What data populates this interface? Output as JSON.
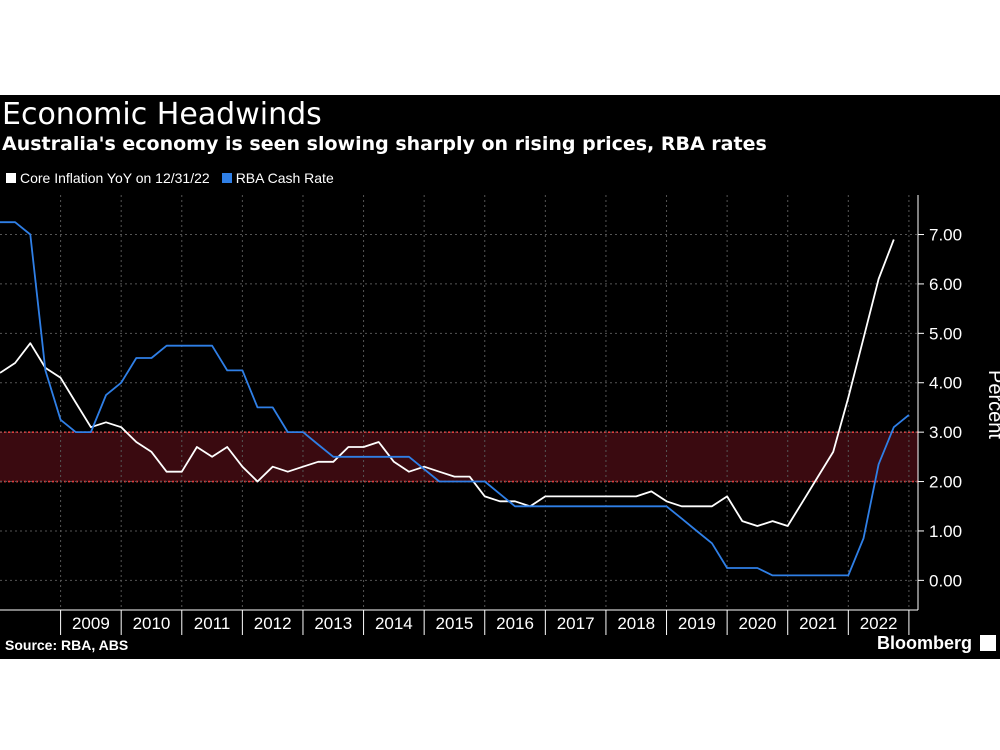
{
  "header": {
    "title": "Economic Headwinds",
    "subtitle": "Australia's economy is seen slowing sharply on rising prices, RBA rates"
  },
  "footer": {
    "source": "Source: RBA, ABS",
    "brand": "Bloomberg"
  },
  "colors": {
    "background": "#000000",
    "inflation": "#ffffff",
    "cash_rate": "#2f7fe6",
    "target_band_fill": "#3a0a10",
    "target_band_line": "#e23a3a",
    "grid": "#555555"
  },
  "chart_data": {
    "type": "line",
    "title": "Economic Headwinds",
    "subtitle": "Australia's economy is seen slowing sharply on rising prices, RBA rates",
    "ylabel": "Percent",
    "ylim": [
      -0.6,
      7.8
    ],
    "xlim": [
      2008.0,
      2023.15
    ],
    "y_ticks": [
      "0.00",
      "1.00",
      "2.00",
      "3.00",
      "4.00",
      "5.00",
      "6.00",
      "7.00"
    ],
    "x_tick_labels": [
      "2009",
      "2010",
      "2011",
      "2012",
      "2013",
      "2014",
      "2015",
      "2016",
      "2017",
      "2018",
      "2019",
      "2020",
      "2021",
      "2022"
    ],
    "grid": true,
    "legend_position": "top-left",
    "target_band": [
      2.0,
      3.0
    ],
    "series": [
      {
        "name": "Core Inflation YoY on 12/31/22",
        "color": "#ffffff",
        "points": [
          [
            2008.0,
            4.2
          ],
          [
            2008.25,
            4.4
          ],
          [
            2008.5,
            4.8
          ],
          [
            2008.75,
            4.3
          ],
          [
            2009.0,
            4.1
          ],
          [
            2009.25,
            3.6
          ],
          [
            2009.5,
            3.1
          ],
          [
            2009.75,
            3.2
          ],
          [
            2010.0,
            3.1
          ],
          [
            2010.25,
            2.8
          ],
          [
            2010.5,
            2.6
          ],
          [
            2010.75,
            2.2
          ],
          [
            2011.0,
            2.2
          ],
          [
            2011.25,
            2.7
          ],
          [
            2011.5,
            2.5
          ],
          [
            2011.75,
            2.7
          ],
          [
            2012.0,
            2.3
          ],
          [
            2012.25,
            2.0
          ],
          [
            2012.5,
            2.3
          ],
          [
            2012.75,
            2.2
          ],
          [
            2013.0,
            2.3
          ],
          [
            2013.25,
            2.4
          ],
          [
            2013.5,
            2.4
          ],
          [
            2013.75,
            2.7
          ],
          [
            2014.0,
            2.7
          ],
          [
            2014.25,
            2.8
          ],
          [
            2014.5,
            2.4
          ],
          [
            2014.75,
            2.2
          ],
          [
            2015.0,
            2.3
          ],
          [
            2015.25,
            2.2
          ],
          [
            2015.5,
            2.1
          ],
          [
            2015.75,
            2.1
          ],
          [
            2016.0,
            1.7
          ],
          [
            2016.25,
            1.6
          ],
          [
            2016.5,
            1.6
          ],
          [
            2016.75,
            1.5
          ],
          [
            2017.0,
            1.7
          ],
          [
            2017.25,
            1.7
          ],
          [
            2017.5,
            1.7
          ],
          [
            2017.75,
            1.7
          ],
          [
            2018.0,
            1.7
          ],
          [
            2018.25,
            1.7
          ],
          [
            2018.5,
            1.7
          ],
          [
            2018.75,
            1.8
          ],
          [
            2019.0,
            1.6
          ],
          [
            2019.25,
            1.5
          ],
          [
            2019.5,
            1.5
          ],
          [
            2019.75,
            1.5
          ],
          [
            2020.0,
            1.7
          ],
          [
            2020.25,
            1.2
          ],
          [
            2020.5,
            1.1
          ],
          [
            2020.75,
            1.2
          ],
          [
            2021.0,
            1.1
          ],
          [
            2021.25,
            1.6
          ],
          [
            2021.5,
            2.1
          ],
          [
            2021.75,
            2.6
          ],
          [
            2022.0,
            3.7
          ],
          [
            2022.25,
            4.9
          ],
          [
            2022.5,
            6.1
          ],
          [
            2022.75,
            6.9
          ]
        ]
      },
      {
        "name": "RBA Cash Rate",
        "color": "#2f7fe6",
        "points": [
          [
            2008.0,
            7.25
          ],
          [
            2008.25,
            7.25
          ],
          [
            2008.5,
            7.0
          ],
          [
            2008.75,
            4.25
          ],
          [
            2009.0,
            3.25
          ],
          [
            2009.25,
            3.0
          ],
          [
            2009.5,
            3.0
          ],
          [
            2009.75,
            3.75
          ],
          [
            2010.0,
            4.0
          ],
          [
            2010.25,
            4.5
          ],
          [
            2010.5,
            4.5
          ],
          [
            2010.75,
            4.75
          ],
          [
            2011.0,
            4.75
          ],
          [
            2011.25,
            4.75
          ],
          [
            2011.5,
            4.75
          ],
          [
            2011.75,
            4.25
          ],
          [
            2012.0,
            4.25
          ],
          [
            2012.25,
            3.5
          ],
          [
            2012.5,
            3.5
          ],
          [
            2012.75,
            3.0
          ],
          [
            2013.0,
            3.0
          ],
          [
            2013.25,
            2.75
          ],
          [
            2013.5,
            2.5
          ],
          [
            2013.75,
            2.5
          ],
          [
            2014.0,
            2.5
          ],
          [
            2014.25,
            2.5
          ],
          [
            2014.5,
            2.5
          ],
          [
            2014.75,
            2.5
          ],
          [
            2015.0,
            2.25
          ],
          [
            2015.25,
            2.0
          ],
          [
            2015.5,
            2.0
          ],
          [
            2015.75,
            2.0
          ],
          [
            2016.0,
            2.0
          ],
          [
            2016.25,
            1.75
          ],
          [
            2016.5,
            1.5
          ],
          [
            2016.75,
            1.5
          ],
          [
            2017.0,
            1.5
          ],
          [
            2017.25,
            1.5
          ],
          [
            2017.5,
            1.5
          ],
          [
            2017.75,
            1.5
          ],
          [
            2018.0,
            1.5
          ],
          [
            2018.25,
            1.5
          ],
          [
            2018.5,
            1.5
          ],
          [
            2018.75,
            1.5
          ],
          [
            2019.0,
            1.5
          ],
          [
            2019.25,
            1.25
          ],
          [
            2019.5,
            1.0
          ],
          [
            2019.75,
            0.75
          ],
          [
            2020.0,
            0.25
          ],
          [
            2020.25,
            0.25
          ],
          [
            2020.5,
            0.25
          ],
          [
            2020.75,
            0.1
          ],
          [
            2021.0,
            0.1
          ],
          [
            2021.25,
            0.1
          ],
          [
            2021.5,
            0.1
          ],
          [
            2021.75,
            0.1
          ],
          [
            2022.0,
            0.1
          ],
          [
            2022.25,
            0.85
          ],
          [
            2022.5,
            2.35
          ],
          [
            2022.75,
            3.1
          ],
          [
            2023.0,
            3.35
          ]
        ]
      }
    ]
  }
}
